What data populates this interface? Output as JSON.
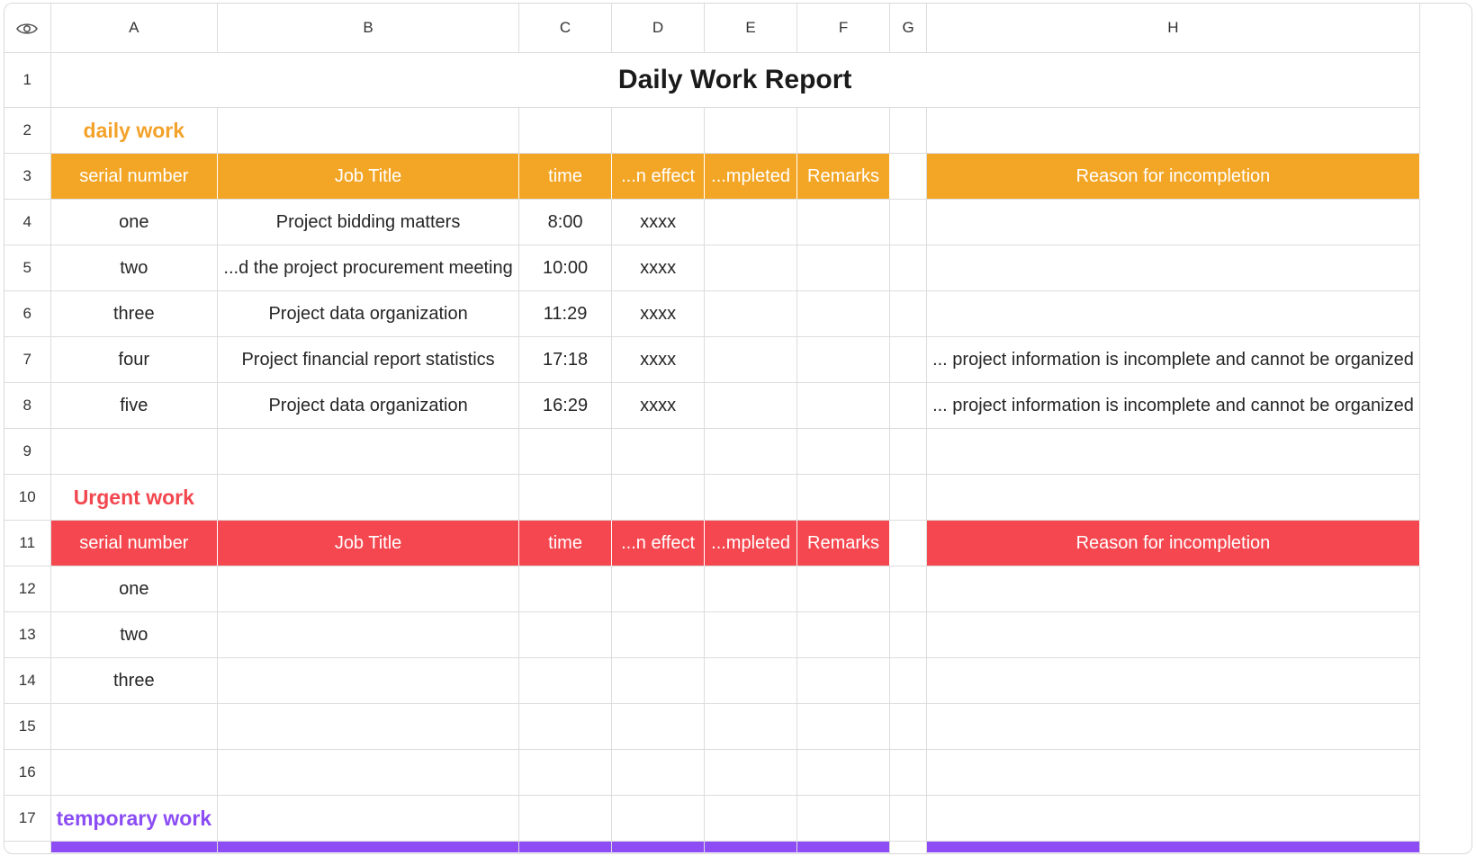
{
  "columns": [
    "A",
    "B",
    "C",
    "D",
    "E",
    "F",
    "G",
    "H"
  ],
  "row_numbers": [
    "1",
    "2",
    "3",
    "4",
    "5",
    "6",
    "7",
    "8",
    "9",
    "10",
    "11",
    "12",
    "13",
    "14",
    "15",
    "16",
    "17"
  ],
  "title": "Daily Work Report",
  "sections": {
    "daily": "daily work",
    "urgent": "Urgent work",
    "temporary": "temporary work"
  },
  "header_labels": {
    "serial": "serial number",
    "job_title": "Job Title",
    "time": "time",
    "effect": "...n effect",
    "completed": "...mpleted",
    "remarks": "Remarks",
    "reason": "Reason for incompletion"
  },
  "daily_rows": [
    {
      "serial": "one",
      "job": "Project bidding matters",
      "time": "8:00",
      "effect": "xxxx",
      "reason": ""
    },
    {
      "serial": "two",
      "job": "...d the project procurement meeting",
      "time": "10:00",
      "effect": "xxxx",
      "reason": ""
    },
    {
      "serial": "three",
      "job": "Project data organization",
      "time": "11:29",
      "effect": "xxxx",
      "reason": ""
    },
    {
      "serial": "four",
      "job": "Project financial report statistics",
      "time": "17:18",
      "effect": "xxxx",
      "reason": "... project information is incomplete and cannot be organized"
    },
    {
      "serial": "five",
      "job": "Project data organization",
      "time": "16:29",
      "effect": "xxxx",
      "reason": "... project information is incomplete and cannot be organized"
    }
  ],
  "urgent_rows": [
    {
      "serial": "one"
    },
    {
      "serial": "two"
    },
    {
      "serial": "three"
    }
  ],
  "colors": {
    "daily_band": "#f3a626",
    "urgent_band": "#f5474f",
    "temporary_band": "#8e4cf5"
  },
  "icons": {
    "corner": "eye-icon"
  }
}
